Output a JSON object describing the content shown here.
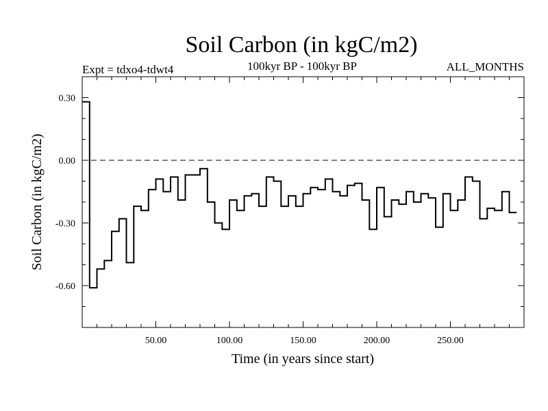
{
  "chart_data": {
    "type": "line",
    "title": "Soil Carbon (in kgC/m2)",
    "subtitle": "100kyr BP - 100kyr BP",
    "left_label": "Expt = tdxo4-tdwt4",
    "right_label": "ALL_MONTHS",
    "xlabel": "Time (in years since start)",
    "ylabel": "Soil Carbon (in kgC/m2)",
    "xlim": [
      0,
      300
    ],
    "ylim": [
      -0.8,
      0.4
    ],
    "xticks": [
      50,
      100,
      150,
      200,
      250
    ],
    "xtick_labels": [
      "50.00",
      "100.00",
      "150.00",
      "200.00",
      "250.00"
    ],
    "yticks": [
      0.3,
      0.0,
      -0.3,
      -0.6
    ],
    "ytick_labels": [
      "0.30",
      "0.00",
      "-0.30",
      "-0.60"
    ],
    "reference_line": {
      "y": 0.0,
      "style": "dashed"
    },
    "series": [
      {
        "style": "step",
        "x_start": 0,
        "x_step": 5,
        "values": [
          0.28,
          -0.61,
          -0.52,
          -0.48,
          -0.34,
          -0.28,
          -0.49,
          -0.22,
          -0.24,
          -0.14,
          -0.09,
          -0.15,
          -0.08,
          -0.19,
          -0.07,
          -0.07,
          -0.04,
          -0.2,
          -0.3,
          -0.33,
          -0.19,
          -0.24,
          -0.17,
          -0.16,
          -0.22,
          -0.08,
          -0.1,
          -0.22,
          -0.17,
          -0.22,
          -0.16,
          -0.13,
          -0.14,
          -0.09,
          -0.15,
          -0.17,
          -0.12,
          -0.11,
          -0.19,
          -0.33,
          -0.13,
          -0.27,
          -0.19,
          -0.21,
          -0.15,
          -0.2,
          -0.16,
          -0.18,
          -0.32,
          -0.16,
          -0.24,
          -0.19,
          -0.08,
          -0.1,
          -0.28,
          -0.23,
          -0.24,
          -0.15,
          -0.25
        ]
      }
    ]
  }
}
